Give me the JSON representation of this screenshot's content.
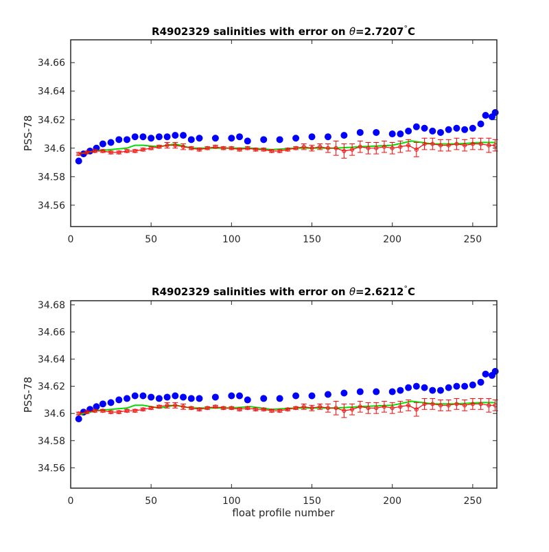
{
  "chart_data": [
    {
      "type": "scatter",
      "title_prefix": "R4902329 salinities with error on ",
      "title_symbol": "θ",
      "title_value": "=2.7207",
      "title_degree": "°",
      "title_unit": "C",
      "xlabel": "",
      "ylabel": "PSS-78",
      "xlim": [
        0,
        265
      ],
      "ylim": [
        34.545,
        34.676
      ],
      "xticks": [
        0,
        50,
        100,
        150,
        200,
        250
      ],
      "yticks": [
        34.56,
        34.58,
        34.6,
        34.62,
        34.64,
        34.66
      ],
      "ytick_labels": [
        "34.56",
        "34.58",
        "34.6",
        "34.62",
        "34.64",
        "34.66"
      ],
      "grid": false,
      "colors": {
        "float": "#0000ff",
        "mapped": "#00dd00",
        "error": "#ff0000"
      },
      "series": [
        {
          "marker": "filled-circle",
          "color": "#0000ff",
          "x": [
            5,
            8,
            12,
            16,
            20,
            25,
            30,
            35,
            40,
            45,
            50,
            55,
            60,
            65,
            70,
            75,
            80,
            90,
            100,
            105,
            110,
            120,
            130,
            140,
            150,
            160,
            170,
            180,
            190,
            200,
            205,
            210,
            215,
            220,
            225,
            230,
            235,
            240,
            245,
            250,
            255,
            258,
            262,
            264
          ],
          "y": [
            34.591,
            34.596,
            34.598,
            34.6,
            34.603,
            34.604,
            34.606,
            34.606,
            34.608,
            34.608,
            34.607,
            34.608,
            34.608,
            34.609,
            34.609,
            34.606,
            34.607,
            34.607,
            34.607,
            34.608,
            34.605,
            34.606,
            34.606,
            34.607,
            34.608,
            34.608,
            34.609,
            34.611,
            34.611,
            34.61,
            34.61,
            34.612,
            34.615,
            34.614,
            34.612,
            34.611,
            34.613,
            34.614,
            34.613,
            34.614,
            34.617,
            34.623,
            34.622,
            34.625
          ]
        },
        {
          "marker": "line",
          "color": "#00dd00",
          "x": [
            5,
            15,
            25,
            35,
            40,
            45,
            55,
            65,
            75,
            85,
            100,
            112,
            125,
            140,
            150,
            165,
            180,
            200,
            212,
            225,
            240,
            255,
            264
          ],
          "y": [
            34.596,
            34.598,
            34.599,
            34.6,
            34.602,
            34.602,
            34.601,
            34.603,
            34.6,
            34.6,
            34.6,
            34.6,
            34.599,
            34.6,
            34.6,
            34.6,
            34.601,
            34.602,
            34.605,
            34.603,
            34.603,
            34.604,
            34.604
          ]
        },
        {
          "marker": "open-circle-errorbar",
          "color": "#ff0000",
          "x": [
            5,
            10,
            15,
            20,
            25,
            30,
            35,
            40,
            45,
            50,
            55,
            60,
            65,
            70,
            75,
            80,
            85,
            90,
            95,
            100,
            105,
            110,
            115,
            120,
            125,
            130,
            135,
            140,
            145,
            150,
            155,
            160,
            165,
            170,
            175,
            180,
            185,
            190,
            195,
            200,
            205,
            210,
            215,
            220,
            225,
            230,
            235,
            240,
            245,
            250,
            255,
            260,
            264
          ],
          "y": [
            34.596,
            34.597,
            34.598,
            34.598,
            34.597,
            34.597,
            34.598,
            34.598,
            34.599,
            34.6,
            34.601,
            34.602,
            34.602,
            34.601,
            34.6,
            34.599,
            34.6,
            34.601,
            34.6,
            34.6,
            34.599,
            34.6,
            34.599,
            34.599,
            34.598,
            34.598,
            34.599,
            34.6,
            34.601,
            34.6,
            34.601,
            34.6,
            34.6,
            34.598,
            34.599,
            34.601,
            34.6,
            34.6,
            34.601,
            34.6,
            34.601,
            34.602,
            34.599,
            34.603,
            34.603,
            34.602,
            34.602,
            34.603,
            34.602,
            34.603,
            34.603,
            34.602,
            34.602
          ],
          "error": [
            0.001,
            0.001,
            0.001,
            0.001,
            0.001,
            0.001,
            0.001,
            0.001,
            0.001,
            0.001,
            0.001,
            0.002,
            0.002,
            0.002,
            0.001,
            0.001,
            0.001,
            0.001,
            0.001,
            0.001,
            0.001,
            0.001,
            0.001,
            0.001,
            0.001,
            0.001,
            0.001,
            0.001,
            0.002,
            0.002,
            0.002,
            0.003,
            0.005,
            0.005,
            0.004,
            0.004,
            0.004,
            0.004,
            0.004,
            0.004,
            0.004,
            0.004,
            0.005,
            0.004,
            0.004,
            0.004,
            0.004,
            0.004,
            0.004,
            0.004,
            0.004,
            0.005,
            0.004
          ]
        }
      ]
    },
    {
      "type": "scatter",
      "title_prefix": "R4902329 salinities with error on ",
      "title_symbol": "θ",
      "title_value": "=2.6212",
      "title_degree": "°",
      "title_unit": "C",
      "xlabel": "float profile number",
      "ylabel": "PSS-78",
      "xlim": [
        0,
        265
      ],
      "ylim": [
        34.545,
        34.683
      ],
      "xticks": [
        0,
        50,
        100,
        150,
        200,
        250
      ],
      "yticks": [
        34.56,
        34.58,
        34.6,
        34.62,
        34.64,
        34.66,
        34.68
      ],
      "ytick_labels": [
        "34.56",
        "34.58",
        "34.6",
        "34.62",
        "34.64",
        "34.66",
        "34.68"
      ],
      "grid": false,
      "colors": {
        "float": "#0000ff",
        "mapped": "#00dd00",
        "error": "#ff0000"
      },
      "series": [
        {
          "marker": "filled-circle",
          "color": "#0000ff",
          "x": [
            5,
            8,
            12,
            16,
            20,
            25,
            30,
            35,
            40,
            45,
            50,
            55,
            60,
            65,
            70,
            75,
            80,
            90,
            100,
            105,
            110,
            120,
            130,
            140,
            150,
            160,
            170,
            180,
            190,
            200,
            205,
            210,
            215,
            220,
            225,
            230,
            235,
            240,
            245,
            250,
            255,
            258,
            262,
            264
          ],
          "y": [
            34.596,
            34.601,
            34.603,
            34.605,
            34.607,
            34.608,
            34.61,
            34.611,
            34.613,
            34.613,
            34.612,
            34.611,
            34.612,
            34.613,
            34.612,
            34.611,
            34.611,
            34.612,
            34.613,
            34.613,
            34.61,
            34.611,
            34.611,
            34.613,
            34.613,
            34.614,
            34.615,
            34.616,
            34.616,
            34.616,
            34.617,
            34.619,
            34.62,
            34.619,
            34.617,
            34.617,
            34.619,
            34.62,
            34.62,
            34.621,
            34.623,
            34.629,
            34.628,
            34.631
          ]
        },
        {
          "marker": "line",
          "color": "#00dd00",
          "x": [
            5,
            15,
            25,
            35,
            40,
            45,
            55,
            65,
            75,
            85,
            100,
            112,
            125,
            140,
            150,
            165,
            180,
            200,
            212,
            225,
            240,
            255,
            264
          ],
          "y": [
            34.599,
            34.602,
            34.603,
            34.604,
            34.606,
            34.606,
            34.604,
            34.606,
            34.604,
            34.604,
            34.604,
            34.605,
            34.603,
            34.604,
            34.604,
            34.604,
            34.605,
            34.606,
            34.609,
            34.607,
            34.607,
            34.608,
            34.608
          ]
        },
        {
          "marker": "open-circle-errorbar",
          "color": "#ff0000",
          "x": [
            5,
            10,
            15,
            20,
            25,
            30,
            35,
            40,
            45,
            50,
            55,
            60,
            65,
            70,
            75,
            80,
            85,
            90,
            95,
            100,
            105,
            110,
            115,
            120,
            125,
            130,
            135,
            140,
            145,
            150,
            155,
            160,
            165,
            170,
            175,
            180,
            185,
            190,
            195,
            200,
            205,
            210,
            215,
            220,
            225,
            230,
            235,
            240,
            245,
            250,
            255,
            260,
            264
          ],
          "y": [
            34.6,
            34.601,
            34.602,
            34.602,
            34.601,
            34.601,
            34.602,
            34.602,
            34.603,
            34.604,
            34.605,
            34.606,
            34.606,
            34.605,
            34.604,
            34.603,
            34.604,
            34.605,
            34.604,
            34.604,
            34.603,
            34.604,
            34.603,
            34.603,
            34.602,
            34.602,
            34.603,
            34.604,
            34.605,
            34.604,
            34.605,
            34.604,
            34.604,
            34.602,
            34.603,
            34.605,
            34.604,
            34.604,
            34.605,
            34.604,
            34.605,
            34.606,
            34.603,
            34.607,
            34.607,
            34.606,
            34.606,
            34.607,
            34.606,
            34.607,
            34.607,
            34.606,
            34.606
          ],
          "error": [
            0.001,
            0.001,
            0.001,
            0.001,
            0.001,
            0.001,
            0.001,
            0.001,
            0.001,
            0.001,
            0.001,
            0.002,
            0.002,
            0.002,
            0.001,
            0.001,
            0.001,
            0.001,
            0.001,
            0.001,
            0.001,
            0.001,
            0.001,
            0.001,
            0.001,
            0.001,
            0.001,
            0.001,
            0.002,
            0.002,
            0.002,
            0.003,
            0.005,
            0.005,
            0.004,
            0.004,
            0.004,
            0.004,
            0.004,
            0.004,
            0.004,
            0.004,
            0.005,
            0.004,
            0.004,
            0.004,
            0.004,
            0.004,
            0.004,
            0.004,
            0.004,
            0.005,
            0.004
          ]
        }
      ]
    }
  ]
}
